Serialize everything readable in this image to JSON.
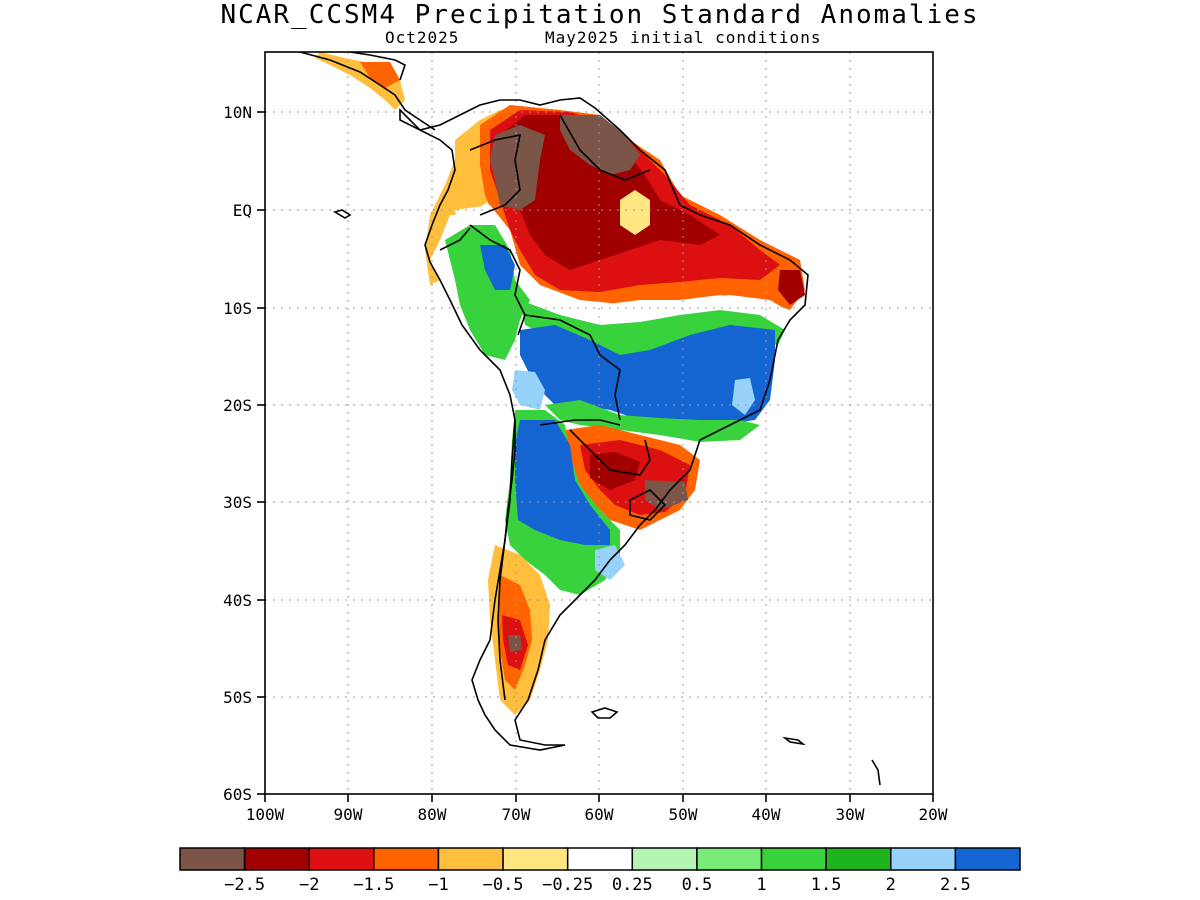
{
  "title": "NCAR_CCSM4 Precipitation Standard Anomalies",
  "subtitle_left": "Oct2025",
  "subtitle_right": "May2025 initial conditions",
  "x_ticks": [
    "100W",
    "90W",
    "80W",
    "70W",
    "60W",
    "50W",
    "40W",
    "30W",
    "20W"
  ],
  "y_ticks": [
    "10N",
    "EQ",
    "10S",
    "20S",
    "30S",
    "40S",
    "50S",
    "60S"
  ],
  "colorbar": {
    "colors": [
      "#7a5548",
      "#a00000",
      "#dc1010",
      "#ff6400",
      "#ffbe3c",
      "#ffe680",
      "#ffffff",
      "#b4f5b4",
      "#78eb78",
      "#37d23c",
      "#1eb41e",
      "#96d2fa",
      "#1464d2"
    ],
    "labels": [
      "−2.5",
      "−2",
      "−1.5",
      "−1",
      "−0.5",
      "−0.25",
      "0.25",
      "0.5",
      "1",
      "1.5",
      "2",
      "2.5"
    ]
  }
}
